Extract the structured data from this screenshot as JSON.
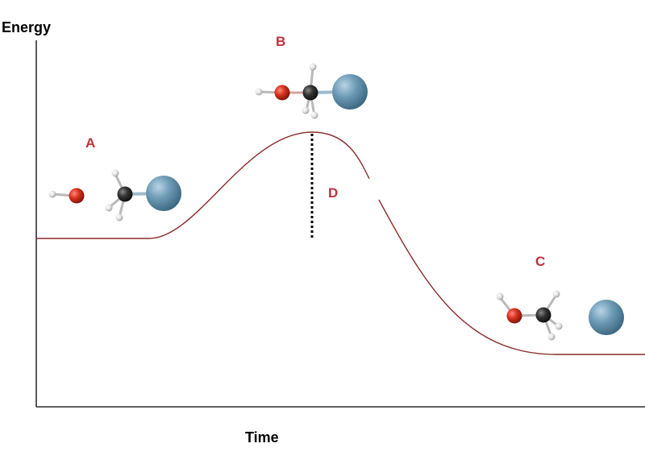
{
  "axes": {
    "y_label": "Energy",
    "x_label": "Time"
  },
  "points": {
    "reactants": "A",
    "transition_state": "B",
    "products": "C",
    "activation_energy": "D"
  },
  "colors": {
    "curve": "#8b2a2a",
    "label": "#c0313b",
    "oxygen": "#d02a1e",
    "carbon": "#2b2b2b",
    "hydrogen": "#e6e6e6",
    "halogen": "#6f9bb5",
    "axis": "#000000"
  },
  "icons": [
    "hydroxide-molecule",
    "methyl-halide-molecule",
    "transition-state-molecule",
    "methanol-molecule",
    "leaving-group-atom"
  ]
}
